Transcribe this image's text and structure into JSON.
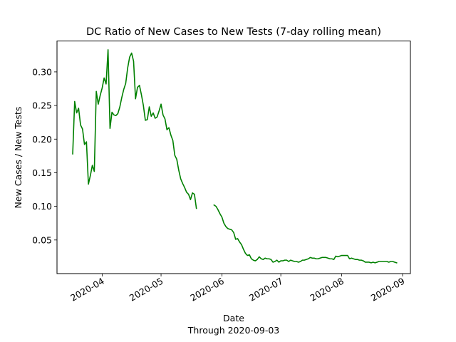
{
  "chart_data": {
    "type": "line",
    "title": "DC Ratio of New Cases to New Tests (7-day rolling mean)",
    "xlabel": "Date",
    "xlabel_sub": "Through 2020-09-03",
    "ylabel": "New Cases / New Tests",
    "xlim": [
      "2020-03-09",
      "2020-09-05"
    ],
    "ylim": [
      0.0,
      0.346
    ],
    "yticks": [
      0.05,
      0.1,
      0.15,
      0.2,
      0.25,
      0.3
    ],
    "ytick_labels": [
      "0.05",
      "0.10",
      "0.15",
      "0.20",
      "0.25",
      "0.30"
    ],
    "xticks": [
      "2020-04-01",
      "2020-05-01",
      "2020-06-01",
      "2020-07-01",
      "2020-08-01",
      "2020-09-01"
    ],
    "xtick_labels": [
      "2020-04",
      "2020-05",
      "2020-06",
      "2020-07",
      "2020-08",
      "2020-09"
    ],
    "grid": false,
    "line_color": "#008000",
    "series": [
      {
        "segments": [
          [
            [
              "2020-03-17",
              0.178
            ],
            [
              "2020-03-18",
              0.256
            ],
            [
              "2020-03-19",
              0.239
            ],
            [
              "2020-03-20",
              0.246
            ],
            [
              "2020-03-21",
              0.221
            ],
            [
              "2020-03-22",
              0.215
            ],
            [
              "2020-03-23",
              0.192
            ],
            [
              "2020-03-24",
              0.196
            ],
            [
              "2020-03-25",
              0.133
            ],
            [
              "2020-03-26",
              0.146
            ],
            [
              "2020-03-27",
              0.161
            ],
            [
              "2020-03-28",
              0.152
            ],
            [
              "2020-03-29",
              0.271
            ],
            [
              "2020-03-30",
              0.252
            ],
            [
              "2020-03-31",
              0.265
            ],
            [
              "2020-04-01",
              0.276
            ],
            [
              "2020-04-02",
              0.291
            ],
            [
              "2020-04-03",
              0.282
            ],
            [
              "2020-04-04",
              0.333
            ],
            [
              "2020-04-05",
              0.216
            ],
            [
              "2020-04-06",
              0.24
            ],
            [
              "2020-04-07",
              0.236
            ],
            [
              "2020-04-08",
              0.235
            ],
            [
              "2020-04-09",
              0.238
            ],
            [
              "2020-04-10",
              0.248
            ],
            [
              "2020-04-11",
              0.262
            ],
            [
              "2020-04-12",
              0.274
            ],
            [
              "2020-04-13",
              0.283
            ],
            [
              "2020-04-14",
              0.306
            ],
            [
              "2020-04-15",
              0.322
            ],
            [
              "2020-04-16",
              0.328
            ],
            [
              "2020-04-17",
              0.316
            ],
            [
              "2020-04-18",
              0.26
            ],
            [
              "2020-04-19",
              0.277
            ],
            [
              "2020-04-20",
              0.28
            ],
            [
              "2020-04-21",
              0.266
            ],
            [
              "2020-04-22",
              0.25
            ],
            [
              "2020-04-23",
              0.228
            ],
            [
              "2020-04-24",
              0.229
            ],
            [
              "2020-04-25",
              0.248
            ],
            [
              "2020-04-26",
              0.234
            ],
            [
              "2020-04-27",
              0.239
            ],
            [
              "2020-04-28",
              0.231
            ],
            [
              "2020-04-29",
              0.233
            ],
            [
              "2020-04-30",
              0.242
            ],
            [
              "2020-05-01",
              0.252
            ],
            [
              "2020-05-02",
              0.236
            ],
            [
              "2020-05-03",
              0.23
            ],
            [
              "2020-05-04",
              0.214
            ],
            [
              "2020-05-05",
              0.217
            ],
            [
              "2020-05-06",
              0.206
            ],
            [
              "2020-05-07",
              0.198
            ],
            [
              "2020-05-08",
              0.176
            ],
            [
              "2020-05-09",
              0.17
            ],
            [
              "2020-05-10",
              0.154
            ],
            [
              "2020-05-11",
              0.141
            ],
            [
              "2020-05-12",
              0.134
            ],
            [
              "2020-05-13",
              0.128
            ],
            [
              "2020-05-14",
              0.121
            ],
            [
              "2020-05-15",
              0.118
            ],
            [
              "2020-05-16",
              0.11
            ],
            [
              "2020-05-17",
              0.12
            ],
            [
              "2020-05-18",
              0.118
            ],
            [
              "2020-05-19",
              0.097
            ]
          ],
          [
            [
              "2020-05-28",
              0.102
            ],
            [
              "2020-05-29",
              0.1
            ],
            [
              "2020-05-30",
              0.095
            ],
            [
              "2020-05-31",
              0.089
            ],
            [
              "2020-06-01",
              0.084
            ],
            [
              "2020-06-02",
              0.075
            ],
            [
              "2020-06-03",
              0.07
            ],
            [
              "2020-06-04",
              0.067
            ],
            [
              "2020-06-05",
              0.066
            ],
            [
              "2020-06-06",
              0.065
            ],
            [
              "2020-06-07",
              0.061
            ],
            [
              "2020-06-08",
              0.051
            ],
            [
              "2020-06-09",
              0.052
            ],
            [
              "2020-06-10",
              0.047
            ],
            [
              "2020-06-11",
              0.043
            ],
            [
              "2020-06-12",
              0.036
            ],
            [
              "2020-06-13",
              0.03
            ],
            [
              "2020-06-14",
              0.027
            ],
            [
              "2020-06-15",
              0.028
            ],
            [
              "2020-06-16",
              0.022
            ],
            [
              "2020-06-17",
              0.02
            ],
            [
              "2020-06-18",
              0.019
            ],
            [
              "2020-06-19",
              0.021
            ],
            [
              "2020-06-20",
              0.025
            ],
            [
              "2020-06-21",
              0.022
            ],
            [
              "2020-06-22",
              0.021
            ],
            [
              "2020-06-23",
              0.023
            ],
            [
              "2020-06-24",
              0.022
            ],
            [
              "2020-06-25",
              0.022
            ],
            [
              "2020-06-26",
              0.021
            ],
            [
              "2020-06-27",
              0.017
            ],
            [
              "2020-06-28",
              0.018
            ],
            [
              "2020-06-29",
              0.02
            ],
            [
              "2020-06-30",
              0.017
            ],
            [
              "2020-07-01",
              0.019
            ],
            [
              "2020-07-02",
              0.019
            ],
            [
              "2020-07-03",
              0.02
            ],
            [
              "2020-07-04",
              0.02
            ],
            [
              "2020-07-05",
              0.018
            ],
            [
              "2020-07-06",
              0.02
            ],
            [
              "2020-07-07",
              0.019
            ],
            [
              "2020-07-08",
              0.018
            ],
            [
              "2020-07-09",
              0.018
            ],
            [
              "2020-07-10",
              0.017
            ],
            [
              "2020-07-11",
              0.018
            ],
            [
              "2020-07-12",
              0.02
            ],
            [
              "2020-07-13",
              0.02
            ],
            [
              "2020-07-14",
              0.021
            ],
            [
              "2020-07-15",
              0.022
            ],
            [
              "2020-07-16",
              0.024
            ],
            [
              "2020-07-17",
              0.023
            ],
            [
              "2020-07-18",
              0.023
            ],
            [
              "2020-07-19",
              0.022
            ],
            [
              "2020-07-20",
              0.022
            ],
            [
              "2020-07-21",
              0.023
            ],
            [
              "2020-07-22",
              0.024
            ],
            [
              "2020-07-23",
              0.024
            ],
            [
              "2020-07-24",
              0.024
            ],
            [
              "2020-07-25",
              0.023
            ],
            [
              "2020-07-26",
              0.022
            ],
            [
              "2020-07-27",
              0.022
            ],
            [
              "2020-07-28",
              0.021
            ],
            [
              "2020-07-29",
              0.026
            ],
            [
              "2020-07-30",
              0.025
            ],
            [
              "2020-07-31",
              0.026
            ],
            [
              "2020-08-01",
              0.027
            ],
            [
              "2020-08-02",
              0.027
            ],
            [
              "2020-08-03",
              0.027
            ],
            [
              "2020-08-04",
              0.027
            ],
            [
              "2020-08-05",
              0.022
            ],
            [
              "2020-08-06",
              0.023
            ],
            [
              "2020-08-07",
              0.022
            ],
            [
              "2020-08-08",
              0.021
            ],
            [
              "2020-08-09",
              0.021
            ],
            [
              "2020-08-10",
              0.02
            ],
            [
              "2020-08-11",
              0.02
            ],
            [
              "2020-08-12",
              0.019
            ],
            [
              "2020-08-13",
              0.017
            ],
            [
              "2020-08-14",
              0.017
            ],
            [
              "2020-08-15",
              0.017
            ],
            [
              "2020-08-16",
              0.016
            ],
            [
              "2020-08-17",
              0.017
            ],
            [
              "2020-08-18",
              0.016
            ],
            [
              "2020-08-19",
              0.017
            ],
            [
              "2020-08-20",
              0.018
            ],
            [
              "2020-08-21",
              0.018
            ],
            [
              "2020-08-22",
              0.018
            ],
            [
              "2020-08-23",
              0.018
            ],
            [
              "2020-08-24",
              0.018
            ],
            [
              "2020-08-25",
              0.017
            ],
            [
              "2020-08-26",
              0.018
            ],
            [
              "2020-08-27",
              0.018
            ],
            [
              "2020-08-28",
              0.017
            ],
            [
              "2020-08-29",
              0.016
            ]
          ]
        ]
      }
    ]
  }
}
